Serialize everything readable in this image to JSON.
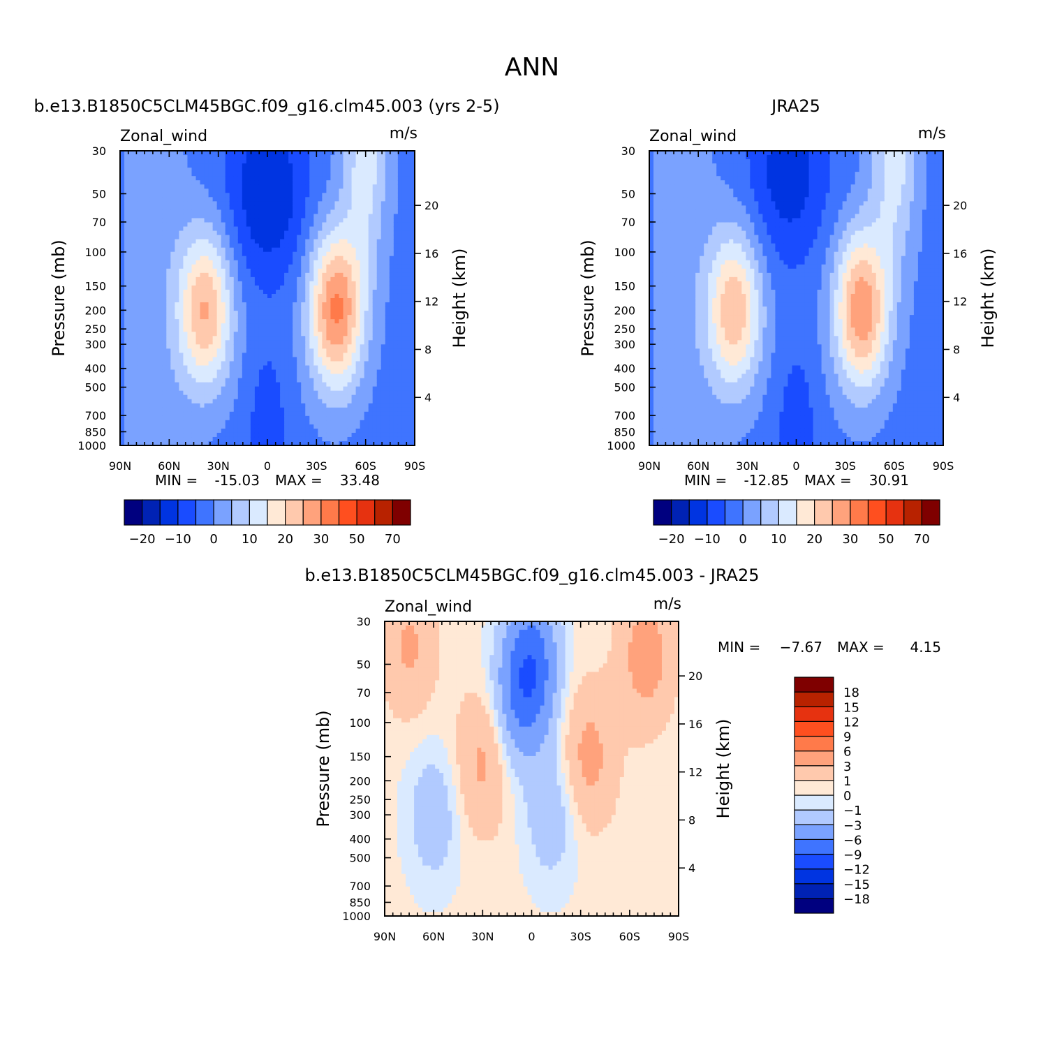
{
  "figure": {
    "title": "ANN",
    "panel_titles": [
      "b.e13.B1850C5CLM45BGC.f09_g16.clm45.003 (yrs 2-5)",
      "JRA25",
      "b.e13.B1850C5CLM45BGC.f09_g16.clm45.003 - JRA25"
    ]
  },
  "chart_data": [
    {
      "type": "heatmap",
      "title": "b.e13.B1850C5CLM45BGC.f09_g16.clm45.003 (yrs 2-5)",
      "variable": "Zonal_wind",
      "units": "m/s",
      "ylabel": "Pressure (mb)",
      "ylabel_right": "Height (km)",
      "x_ticks": [
        "90N",
        "60N",
        "30N",
        "0",
        "30S",
        "60S",
        "90S"
      ],
      "p_ticks": [
        30,
        50,
        70,
        100,
        150,
        200,
        250,
        300,
        400,
        500,
        700,
        850,
        1000
      ],
      "height_ticks": [
        20,
        16,
        12,
        8,
        4
      ],
      "ylim": [
        1000,
        30
      ],
      "min_label": "MIN =",
      "min_value": "-15.03",
      "max_label": "MAX =",
      "max_value": "33.48",
      "colorbar": {
        "orientation": "horizontal",
        "colors": [
          "#00007f",
          "#0022b4",
          "#0034e1",
          "#1a4cff",
          "#3f74ff",
          "#7aa2ff",
          "#b1caff",
          "#daeaff",
          "#ffe9d6",
          "#ffc9ad",
          "#ffa27c",
          "#ff7a4a",
          "#ff4f1f",
          "#e63210",
          "#b82200",
          "#7f0000"
        ],
        "tick_labels": [
          "-20",
          "-10",
          "0",
          "10",
          "20",
          "30",
          "50",
          "70"
        ]
      },
      "jets": [
        {
          "lat": 38,
          "lev": 200,
          "core": 27
        },
        {
          "lat": -42,
          "lev": 200,
          "core": 33
        },
        {
          "lat": 0,
          "lev": 50,
          "core": -15
        }
      ]
    },
    {
      "type": "heatmap",
      "title": "JRA25",
      "variable": "Zonal_wind",
      "units": "m/s",
      "ylabel": "Pressure (mb)",
      "ylabel_right": "Height (km)",
      "x_ticks": [
        "90N",
        "60N",
        "30N",
        "0",
        "30S",
        "60S",
        "90S"
      ],
      "p_ticks": [
        30,
        50,
        70,
        100,
        150,
        200,
        250,
        300,
        400,
        500,
        700,
        850,
        1000
      ],
      "height_ticks": [
        20,
        16,
        12,
        8,
        4
      ],
      "ylim": [
        1000,
        30
      ],
      "min_label": "MIN =",
      "min_value": "-12.85",
      "max_label": "MAX =",
      "max_value": "30.91",
      "colorbar": {
        "orientation": "horizontal",
        "colors": [
          "#00007f",
          "#0022b4",
          "#0034e1",
          "#1a4cff",
          "#3f74ff",
          "#7aa2ff",
          "#b1caff",
          "#daeaff",
          "#ffe9d6",
          "#ffc9ad",
          "#ffa27c",
          "#ff7a4a",
          "#ff4f1f",
          "#e63210",
          "#b82200",
          "#7f0000"
        ],
        "tick_labels": [
          "-20",
          "-10",
          "0",
          "10",
          "20",
          "30",
          "50",
          "70"
        ]
      },
      "jets": [
        {
          "lat": 38,
          "lev": 200,
          "core": 26
        },
        {
          "lat": -40,
          "lev": 200,
          "core": 31
        },
        {
          "lat": 5,
          "lev": 40,
          "core": -13
        }
      ]
    },
    {
      "type": "heatmap",
      "title": "b.e13.B1850C5CLM45BGC.f09_g16.clm45.003 - JRA25",
      "variable": "Zonal_wind",
      "units": "m/s",
      "ylabel": "Pressure (mb)",
      "ylabel_right": "Height (km)",
      "x_ticks": [
        "90N",
        "60N",
        "30N",
        "0",
        "30S",
        "60S",
        "90S"
      ],
      "p_ticks": [
        30,
        50,
        70,
        100,
        150,
        200,
        250,
        300,
        400,
        500,
        700,
        850,
        1000
      ],
      "height_ticks": [
        20,
        16,
        12,
        8,
        4
      ],
      "ylim": [
        1000,
        30
      ],
      "min_label": "MIN =",
      "min_value": "-7.67",
      "max_label": "MAX =",
      "max_value": "4.15",
      "colorbar": {
        "orientation": "vertical",
        "colors": [
          "#00007f",
          "#0022b4",
          "#0034e1",
          "#1a4cff",
          "#3f74ff",
          "#7aa2ff",
          "#b1caff",
          "#daeaff",
          "#ffe9d6",
          "#ffc9ad",
          "#ffa27c",
          "#ff7a4a",
          "#ff4f1f",
          "#e63210",
          "#b82200",
          "#7f0000"
        ],
        "tick_labels": [
          "18",
          "15",
          "12",
          "9",
          "6",
          "3",
          "1",
          "0",
          "-1",
          "-3",
          "-6",
          "-9",
          "-12",
          "-15",
          "-18"
        ]
      },
      "blobs": [
        {
          "lat": 0,
          "lev": 50,
          "amp": -7.5
        },
        {
          "lat": 8,
          "lev": 80,
          "amp": -4
        },
        {
          "lat": -70,
          "lev": 45,
          "amp": 4
        },
        {
          "lat": -35,
          "lev": 150,
          "amp": 3.5
        },
        {
          "lat": 30,
          "lev": 160,
          "amp": 3.2
        },
        {
          "lat": 75,
          "lev": 40,
          "amp": 3
        },
        {
          "lat": 60,
          "lev": 300,
          "amp": -2.5
        },
        {
          "lat": -12,
          "lev": 300,
          "amp": -2.5
        }
      ]
    }
  ]
}
